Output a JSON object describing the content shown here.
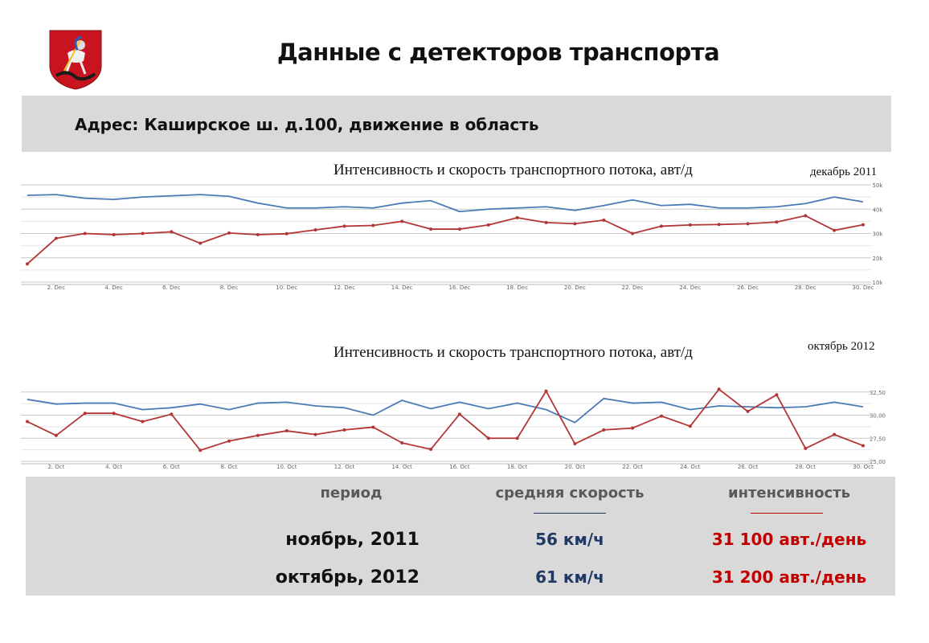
{
  "page": {
    "title": "Данные с детекторов транспорта",
    "address": "Адрес: Каширское ш. д.100, движение в область"
  },
  "colors": {
    "speed_series": "#4a7bb7",
    "intensity_series": "#b33636",
    "panel_bg": "#d9d9d9",
    "speed_text": "#1f3864",
    "intensity_text": "#c00000"
  },
  "chart_data": [
    {
      "type": "line",
      "title": "Интенсивность и скорость транспортного потока, авт/д",
      "period_label": "декабрь 2011",
      "x": [
        1,
        2,
        3,
        4,
        5,
        6,
        7,
        8,
        9,
        10,
        11,
        12,
        13,
        14,
        15,
        16,
        17,
        18,
        19,
        20,
        21,
        22,
        23,
        24,
        25,
        26,
        27,
        28,
        29,
        30
      ],
      "xtick_values": [
        2,
        4,
        6,
        8,
        10,
        12,
        14,
        16,
        18,
        20,
        22,
        24,
        26,
        28,
        30
      ],
      "xtick_labels": [
        "2. Dec",
        "4. Dec",
        "6. Dec",
        "8. Dec",
        "10. Dec",
        "12. Dec",
        "14. Dec",
        "16. Dec",
        "18. Dec",
        "20. Dec",
        "22. Dec",
        "24. Dec",
        "26. Dec",
        "28. Dec",
        "30. Dec"
      ],
      "ylim": [
        10000,
        50000
      ],
      "ytick_values": [
        10000,
        20000,
        30000,
        40000,
        50000
      ],
      "ytick_labels": [
        "10k",
        "20k",
        "30k",
        "40k",
        "50k"
      ],
      "grid": true,
      "series": [
        {
          "color": "#4a7bb7",
          "markers": false,
          "values": [
            45700,
            46000,
            44500,
            44000,
            45000,
            45500,
            46000,
            45300,
            42500,
            40500,
            40500,
            41000,
            40500,
            42500,
            43500,
            39000,
            40000,
            40500,
            41000,
            39500,
            41500,
            43800,
            41500,
            42000,
            40500,
            40500,
            41000,
            42300,
            45000,
            43000
          ]
        },
        {
          "color": "#b33636",
          "markers": true,
          "values": [
            17500,
            28000,
            30000,
            29500,
            30000,
            30700,
            26000,
            30200,
            29500,
            29900,
            31500,
            33000,
            33300,
            35000,
            31800,
            31800,
            33500,
            36500,
            34500,
            34000,
            35500,
            30000,
            33000,
            33500,
            33700,
            34000,
            34700,
            37300,
            31300,
            33600
          ]
        }
      ]
    },
    {
      "type": "line",
      "title": "Интенсивность и скорость транспортного потока, авт/д",
      "period_label": "октябрь 2012",
      "x": [
        1,
        2,
        3,
        4,
        5,
        6,
        7,
        8,
        9,
        10,
        11,
        12,
        13,
        14,
        15,
        16,
        17,
        18,
        19,
        20,
        21,
        22,
        23,
        24,
        25,
        26,
        27,
        28,
        29,
        30
      ],
      "xtick_values": [
        2,
        4,
        6,
        8,
        10,
        12,
        14,
        16,
        18,
        20,
        22,
        24,
        26,
        28,
        30
      ],
      "xtick_labels": [
        "2. Oct",
        "4. Oct",
        "6. Oct",
        "8. Oct",
        "10. Oct",
        "12. Oct",
        "14. Oct",
        "16. Oct",
        "18. Oct",
        "20. Oct",
        "22. Oct",
        "24. Oct",
        "26. Oct",
        "28. Oct",
        "30. Oct"
      ],
      "ylim": [
        25000,
        33000
      ],
      "ytick_values": [
        25000,
        27500,
        30000,
        32500
      ],
      "ytick_labels": [
        "25,00",
        "27,50",
        "30,00",
        "32,50"
      ],
      "grid": true,
      "series": [
        {
          "color": "#4a7bb7",
          "markers": false,
          "values": [
            31700,
            31200,
            31300,
            31300,
            30600,
            30800,
            31200,
            30600,
            31300,
            31400,
            31000,
            30800,
            30000,
            31600,
            30700,
            31400,
            30700,
            31300,
            30600,
            29200,
            31800,
            31300,
            31400,
            30600,
            31000,
            30900,
            30800,
            30900,
            31400,
            30900
          ]
        },
        {
          "color": "#b33636",
          "markers": true,
          "values": [
            29300,
            27800,
            30200,
            30200,
            29300,
            30100,
            26200,
            27200,
            27800,
            28300,
            27900,
            28400,
            28700,
            27000,
            26300,
            30100,
            27500,
            27500,
            32600,
            26900,
            28400,
            28600,
            29900,
            28800,
            32800,
            30400,
            32200,
            26400,
            27900,
            26700
          ]
        }
      ]
    }
  ],
  "summary": {
    "headers": {
      "period": "период",
      "avg_speed": "средняя скорость",
      "intensity": "интенсивность"
    },
    "rows": [
      {
        "period": "ноябрь, 2011",
        "avg_speed": "56 км/ч",
        "intensity": "31 100 авт./день"
      },
      {
        "period": "октябрь, 2012",
        "avg_speed": "61 км/ч",
        "intensity": "31 200 авт./день"
      }
    ]
  }
}
